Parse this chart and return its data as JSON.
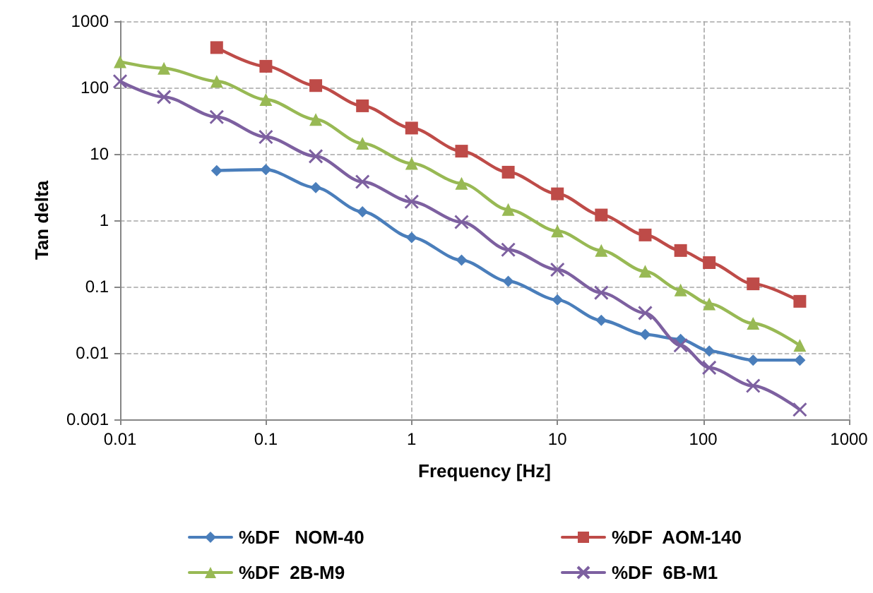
{
  "chart_data": {
    "type": "line",
    "xlabel": "Frequency [Hz]",
    "ylabel": "Tan delta",
    "log": "xy",
    "grid": true,
    "legend": "bottom",
    "line_style": "solid",
    "xlim": [
      0.01,
      1000
    ],
    "xticks": [
      0.01,
      0.1,
      1,
      10,
      100,
      1000
    ],
    "ylim": [
      0.001,
      1000
    ],
    "yticks": [
      0.001,
      0.01,
      0.1,
      1,
      10,
      100,
      1000
    ],
    "series": [
      {
        "name": "%DF   NOM-40",
        "color": "#4a7ebb",
        "marker": "diamond",
        "x": [
          0.046,
          0.1,
          0.22,
          0.46,
          1,
          2.2,
          4.6,
          10,
          20,
          40,
          70,
          110,
          220,
          460
        ],
        "values": [
          5.6,
          5.8,
          3.1,
          1.34,
          0.55,
          0.25,
          0.12,
          0.063,
          0.031,
          0.019,
          0.016,
          0.0107,
          0.0078,
          0.0078
        ]
      },
      {
        "name": "%DF  AOM-140",
        "color": "#be4b48",
        "marker": "square",
        "x": [
          0.046,
          0.1,
          0.22,
          0.46,
          1,
          2.2,
          4.6,
          10,
          20,
          40,
          70,
          110,
          220,
          460
        ],
        "values": [
          400,
          209,
          107,
          53,
          24.5,
          11,
          5.3,
          2.5,
          1.2,
          0.6,
          0.35,
          0.23,
          0.11,
          0.06
        ]
      },
      {
        "name": "%DF  2B-M9",
        "color": "#98b954",
        "marker": "triangle",
        "x": [
          0.01,
          0.02,
          0.046,
          0.1,
          0.22,
          0.46,
          1,
          2.2,
          4.6,
          10,
          20,
          40,
          70,
          110,
          220,
          460
        ],
        "values": [
          245,
          195,
          124,
          66,
          33,
          14.4,
          7.2,
          3.6,
          1.45,
          0.69,
          0.35,
          0.17,
          0.089,
          0.055,
          0.028,
          0.013
        ]
      },
      {
        "name": "%DF  6B-M1",
        "color": "#7d60a0",
        "marker": "cross",
        "x": [
          0.01,
          0.02,
          0.046,
          0.1,
          0.22,
          0.46,
          1,
          2.2,
          4.6,
          10,
          20,
          40,
          70,
          110,
          220,
          460
        ],
        "values": [
          124,
          72,
          36,
          18,
          9.2,
          3.8,
          1.9,
          0.94,
          0.36,
          0.18,
          0.081,
          0.04,
          0.013,
          0.006,
          0.0032,
          0.0014
        ]
      }
    ]
  }
}
